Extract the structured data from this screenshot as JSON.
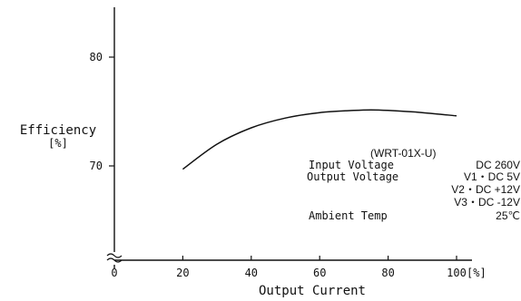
{
  "chart_data": {
    "type": "line",
    "xlabel": "Output Current",
    "x_unit": "[%]",
    "ylabel": "Efficiency",
    "y_unit": "[%]",
    "xlim": [
      0,
      100
    ],
    "ylim": [
      60,
      85
    ],
    "x_ticks": [
      0,
      20,
      40,
      60,
      80,
      100
    ],
    "y_ticks": [
      70,
      80
    ],
    "axis_break": true,
    "grid": false,
    "series": [
      {
        "x": [
          20,
          30,
          40,
          50,
          60,
          70,
          75,
          80,
          90,
          100
        ],
        "y": [
          69.7,
          72.0,
          73.5,
          74.4,
          74.9,
          75.1,
          75.15,
          75.1,
          74.9,
          74.6
        ]
      }
    ],
    "annotation": {
      "model": "(WRT-01X-U)",
      "rows": [
        {
          "label": "Input Voltage",
          "value": "DC 260V"
        },
        {
          "label": "Output Voltage",
          "value": "V1・DC  5V"
        },
        {
          "label": "",
          "value": "V2・DC +12V"
        },
        {
          "label": "",
          "value": "V3・DC -12V"
        },
        {
          "label": "Ambient Temp",
          "value": "25℃"
        }
      ]
    },
    "line_color": "#111111"
  }
}
